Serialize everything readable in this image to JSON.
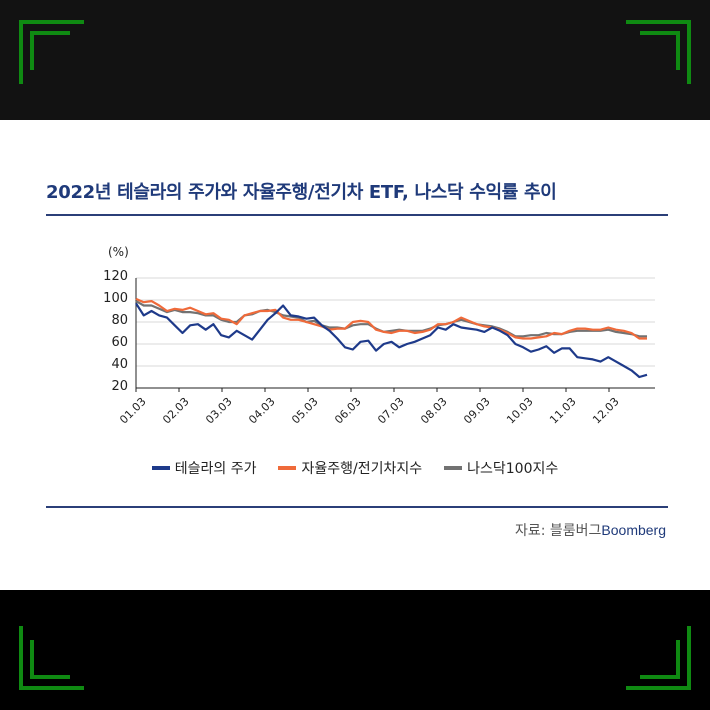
{
  "title": "2022년 테슬라의 주가와 자율주행/전기차 ETF, 나스닥 수익률 추이",
  "unit_label": "(%)",
  "source": {
    "prefix": "자료: 블룸버그",
    "brand": "Boomberg"
  },
  "colors": {
    "band_top": "#121212",
    "band_bottom": "#000000",
    "corner_green": "#0f8a12",
    "title": "#1f3a7a",
    "tesla": "#1e3a8a",
    "etf": "#ef6a3a",
    "nasdaq": "#727272",
    "grid": "#d9d9d9"
  },
  "legend": [
    {
      "label": "테슬라의 주가",
      "color": "#1e3a8a"
    },
    {
      "label": "자율주행/전기차지수",
      "color": "#ef6a3a"
    },
    {
      "label": "나스닥100지수",
      "color": "#727272"
    }
  ],
  "chart_data": {
    "type": "line",
    "title": "2022년 테슬라의 주가와 자율주행/전기차 ETF, 나스닥 수익률 추이",
    "xlabel": "",
    "ylabel": "(%)",
    "ylim": [
      20,
      120
    ],
    "yticks": [
      20,
      40,
      60,
      80,
      100,
      120
    ],
    "grid": true,
    "legend_position": "bottom",
    "categories": [
      "01.03",
      "02.03",
      "03.03",
      "04.03",
      "05.03",
      "06.03",
      "07.03",
      "08.03",
      "09.03",
      "10.03",
      "11.03",
      "12.03"
    ],
    "x_points_per_month": 4,
    "series": [
      {
        "name": "테슬라의 주가",
        "values": [
          97,
          86,
          90,
          86,
          84,
          77,
          70,
          77,
          78,
          73,
          78,
          68,
          66,
          72,
          68,
          64,
          73,
          82,
          88,
          95,
          86,
          85,
          83,
          84,
          77,
          72,
          65,
          57,
          55,
          62,
          63,
          54,
          60,
          62,
          57,
          60,
          62,
          65,
          68,
          75,
          73,
          78,
          75,
          74,
          73,
          71,
          75,
          72,
          68,
          60,
          57,
          53,
          55,
          58,
          52,
          56,
          56,
          48,
          47,
          46,
          44,
          48,
          44,
          40,
          36,
          30,
          32
        ]
      },
      {
        "name": "자율주행/전기차지수",
        "values": [
          101,
          98,
          99,
          95,
          90,
          92,
          91,
          93,
          90,
          87,
          88,
          83,
          82,
          78,
          86,
          88,
          90,
          90,
          91,
          84,
          82,
          82,
          80,
          78,
          76,
          73,
          74,
          74,
          80,
          81,
          80,
          73,
          71,
          70,
          72,
          72,
          70,
          71,
          73,
          78,
          78,
          80,
          84,
          81,
          78,
          76,
          75,
          73,
          70,
          66,
          65,
          65,
          66,
          67,
          70,
          69,
          72,
          74,
          74,
          73,
          73,
          75,
          73,
          72,
          70,
          65,
          65
        ]
      },
      {
        "name": "나스닥100지수",
        "values": [
          99,
          95,
          95,
          92,
          89,
          91,
          89,
          89,
          88,
          86,
          86,
          82,
          80,
          80,
          86,
          87,
          90,
          91,
          89,
          86,
          85,
          84,
          80,
          81,
          77,
          75,
          75,
          74,
          77,
          78,
          78,
          74,
          71,
          72,
          73,
          72,
          72,
          72,
          74,
          77,
          78,
          80,
          82,
          80,
          78,
          77,
          76,
          74,
          71,
          67,
          67,
          68,
          68,
          70,
          69,
          69,
          71,
          72,
          72,
          72,
          72,
          73,
          71,
          70,
          69,
          67,
          67
        ]
      }
    ]
  }
}
